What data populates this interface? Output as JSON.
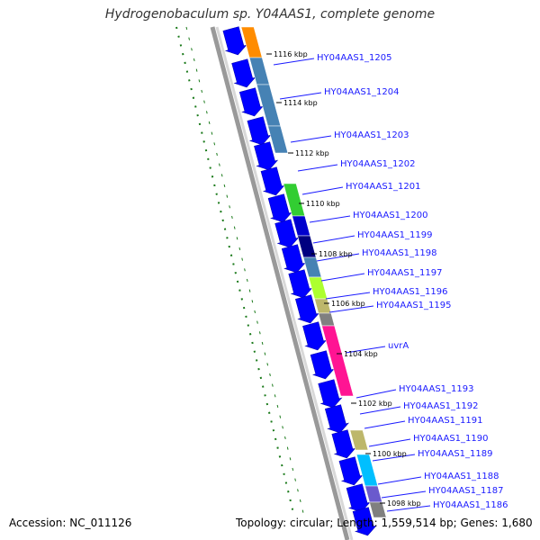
{
  "title": "Hydrogenobaculum sp. Y04AAS1, complete genome",
  "footer": {
    "accession": "Accession: NC_011126",
    "summary": "Topology: circular; Length: 1,559,514 bp; Genes: 1,680"
  },
  "colors": {
    "gene_label": "#1a1aff",
    "forward_cds": "#0000ff",
    "backbone": "#888888",
    "gc_skew": "#1a7a1a"
  },
  "genes": [
    {
      "name": "HY04AAS1_1205",
      "color": "#ff8c00"
    },
    {
      "name": "HY04AAS1_1204",
      "color": "#4682b4"
    },
    {
      "name": "HY04AAS1_1203",
      "color": "#4682b4"
    },
    {
      "name": "HY04AAS1_1202",
      "color": "#4682b4"
    },
    {
      "name": "HY04AAS1_1201",
      "color": "#32cd32"
    },
    {
      "name": "HY04AAS1_1200",
      "color": "#0000cd"
    },
    {
      "name": "HY04AAS1_1199",
      "color": "#000080"
    },
    {
      "name": "HY04AAS1_1198",
      "color": "#4682b4"
    },
    {
      "name": "HY04AAS1_1197",
      "color": "#adff2f"
    },
    {
      "name": "HY04AAS1_1196",
      "color": "#bdb76b"
    },
    {
      "name": "HY04AAS1_1195",
      "color": "#808080"
    },
    {
      "name": "uvrA",
      "color": "#ff1493"
    },
    {
      "name": "HY04AAS1_1193",
      "color": "#ffffff"
    },
    {
      "name": "HY04AAS1_1192",
      "color": "#ffffff"
    },
    {
      "name": "HY04AAS1_1191",
      "color": "#bdb76b"
    },
    {
      "name": "HY04AAS1_1190",
      "color": "#ffffff"
    },
    {
      "name": "HY04AAS1_1189",
      "color": "#00bfff"
    },
    {
      "name": "HY04AAS1_1188",
      "color": "#00bfff"
    },
    {
      "name": "HY04AAS1_1187",
      "color": "#6a5acd"
    },
    {
      "name": "HY04AAS1_1186",
      "color": "#808080"
    }
  ],
  "ticks": [
    "1116 kbp",
    "1114 kbp",
    "1112 kbp",
    "1110 kbp",
    "1108 kbp",
    "1106 kbp",
    "1104 kbp",
    "1102 kbp",
    "1100 kbp",
    "1098 kbp"
  ]
}
